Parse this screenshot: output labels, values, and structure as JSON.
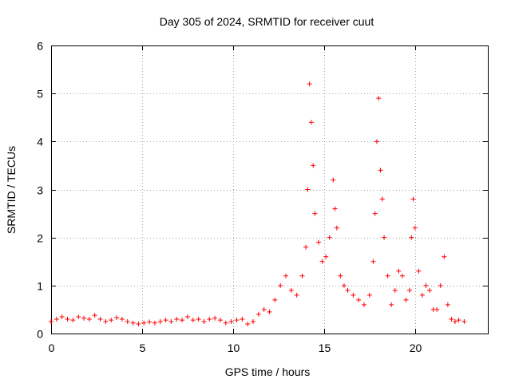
{
  "chart_data": {
    "type": "scatter",
    "title": "Day 305 of 2024, SRMTID for receiver cuut",
    "xlabel": "GPS time / hours",
    "ylabel": "SRMTID / TECUs",
    "xlim": [
      0,
      24
    ],
    "ylim": [
      0,
      6
    ],
    "xticks": [
      0,
      5,
      10,
      15,
      20
    ],
    "yticks": [
      0,
      1,
      2,
      3,
      4,
      5,
      6
    ],
    "grid": true,
    "marker": "+",
    "series": [
      {
        "name": "SRMTID",
        "color": "#ff0000",
        "x": [
          0.0,
          0.3,
          0.6,
          0.9,
          1.2,
          1.5,
          1.8,
          2.1,
          2.4,
          2.7,
          3.0,
          3.3,
          3.6,
          3.9,
          4.2,
          4.5,
          4.8,
          5.1,
          5.4,
          5.7,
          6.0,
          6.3,
          6.6,
          6.9,
          7.2,
          7.5,
          7.8,
          8.1,
          8.4,
          8.7,
          9.0,
          9.3,
          9.6,
          9.9,
          10.2,
          10.5,
          10.8,
          11.1,
          11.4,
          11.7,
          12.0,
          12.3,
          12.6,
          12.9,
          13.2,
          13.5,
          13.8,
          14.0,
          14.1,
          14.2,
          14.3,
          14.4,
          14.5,
          14.7,
          14.9,
          15.1,
          15.3,
          15.5,
          15.6,
          15.7,
          15.9,
          16.1,
          16.3,
          16.6,
          16.9,
          17.2,
          17.5,
          17.7,
          17.8,
          17.9,
          18.0,
          18.1,
          18.2,
          18.3,
          18.5,
          18.7,
          18.9,
          19.1,
          19.3,
          19.5,
          19.7,
          19.8,
          19.9,
          20.0,
          20.2,
          20.4,
          20.6,
          20.8,
          21.0,
          21.2,
          21.4,
          21.6,
          21.8,
          22.0,
          22.2,
          22.4,
          22.7
        ],
        "y": [
          0.25,
          0.3,
          0.35,
          0.3,
          0.28,
          0.35,
          0.32,
          0.3,
          0.38,
          0.3,
          0.25,
          0.28,
          0.33,
          0.3,
          0.25,
          0.22,
          0.2,
          0.22,
          0.24,
          0.22,
          0.25,
          0.28,
          0.25,
          0.3,
          0.28,
          0.35,
          0.28,
          0.3,
          0.25,
          0.3,
          0.32,
          0.28,
          0.22,
          0.25,
          0.28,
          0.3,
          0.2,
          0.25,
          0.4,
          0.5,
          0.45,
          0.7,
          1.0,
          1.2,
          0.9,
          0.8,
          1.2,
          1.8,
          3.0,
          5.2,
          4.4,
          3.5,
          2.5,
          1.9,
          1.5,
          1.6,
          2.0,
          3.2,
          2.6,
          2.2,
          1.2,
          1.0,
          0.9,
          0.8,
          0.7,
          0.6,
          0.8,
          1.5,
          2.5,
          4.0,
          4.9,
          3.4,
          2.8,
          2.0,
          1.2,
          0.6,
          0.9,
          1.3,
          1.2,
          0.7,
          0.9,
          2.0,
          2.8,
          2.2,
          1.3,
          0.8,
          1.0,
          0.9,
          0.5,
          0.5,
          1.0,
          1.6,
          0.6,
          0.3,
          0.25,
          0.28,
          0.25
        ]
      }
    ]
  }
}
